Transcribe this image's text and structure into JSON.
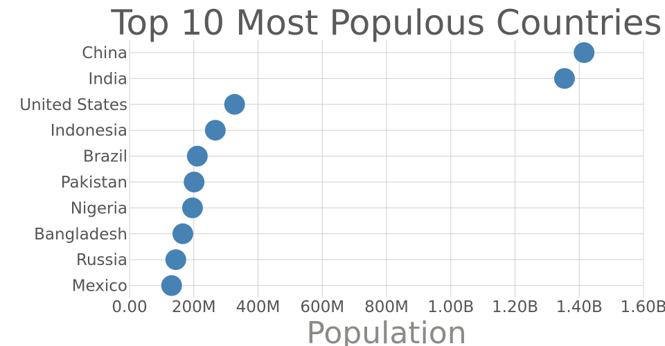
{
  "chart_data": {
    "type": "scatter",
    "title": "Top 10 Most Populous Countries",
    "xlabel": "Population",
    "ylabel": "",
    "xlim": [
      0,
      1600000000
    ],
    "x_ticks": [
      0,
      200000000,
      400000000,
      600000000,
      800000000,
      1000000000,
      1200000000,
      1400000000,
      1600000000
    ],
    "x_tick_labels": [
      "0.00",
      "200M",
      "400M",
      "600M",
      "800M",
      "1.00B",
      "1.20B",
      "1.40B",
      "1.60B"
    ],
    "categories": [
      "China",
      "India",
      "United States",
      "Indonesia",
      "Brazil",
      "Pakistan",
      "Nigeria",
      "Bangladesh",
      "Russia",
      "Mexico"
    ],
    "values": [
      1415000000,
      1354000000,
      327000000,
      267000000,
      211000000,
      201000000,
      196000000,
      166000000,
      144000000,
      131000000
    ],
    "grid": true,
    "marker_color": "#4682b4"
  }
}
